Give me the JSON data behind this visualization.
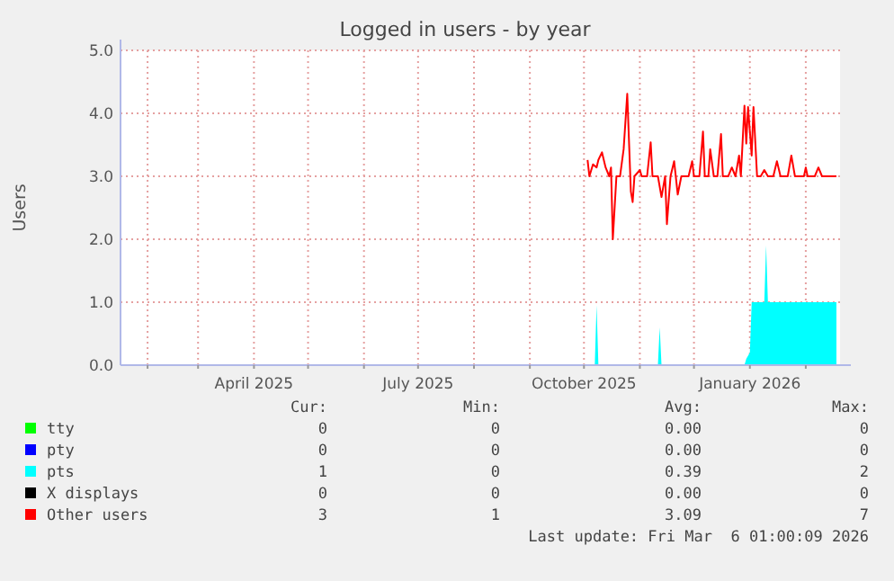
{
  "chart_data": {
    "type": "line",
    "title": "Logged in users - by year",
    "ylabel": "Users",
    "xlim": [
      "2025-01-17",
      "2026-02-20"
    ],
    "xticks": [
      {
        "value": "2025-02-01",
        "label": null
      },
      {
        "value": "2025-03-01",
        "label": null
      },
      {
        "value": "2025-04-01",
        "label": "April 2025"
      },
      {
        "value": "2025-05-01",
        "label": null
      },
      {
        "value": "2025-06-01",
        "label": null
      },
      {
        "value": "2025-07-01",
        "label": "July 2025"
      },
      {
        "value": "2025-08-01",
        "label": null
      },
      {
        "value": "2025-09-01",
        "label": null
      },
      {
        "value": "2025-10-01",
        "label": "October 2025"
      },
      {
        "value": "2025-11-01",
        "label": null
      },
      {
        "value": "2025-12-01",
        "label": null
      },
      {
        "value": "2026-01-01",
        "label": "January 2026"
      },
      {
        "value": "2026-02-01",
        "label": null
      }
    ],
    "ylim": [
      0,
      5
    ],
    "yticks": [
      {
        "value": 0,
        "label": "0.0"
      },
      {
        "value": 1,
        "label": "1.0"
      },
      {
        "value": 2,
        "label": "2.0"
      },
      {
        "value": 3,
        "label": "3.0"
      },
      {
        "value": 4,
        "label": "4.0"
      },
      {
        "value": 5,
        "label": "5.0"
      }
    ],
    "grid": true,
    "legend": "bottom",
    "series": [
      {
        "name": "tty",
        "color": "#00ff00"
      },
      {
        "name": "pty",
        "color": "#0000ff"
      },
      {
        "name": "pts",
        "color": "#00ffff",
        "type": "area",
        "x": [
          "2025-10-03",
          "2025-10-07",
          "2025-10-08",
          "2025-10-09",
          "2025-11-11",
          "2025-11-12",
          "2025-11-13",
          "2025-12-29",
          "2025-12-30",
          "2026-01-01",
          "2026-01-02",
          "2026-01-09",
          "2026-01-10",
          "2026-01-11",
          "2026-02-18"
        ],
        "values": [
          0,
          0,
          0.95,
          0,
          0,
          0.6,
          0,
          0,
          0.1,
          0.2,
          1,
          1,
          1.9,
          1,
          1
        ]
      },
      {
        "name": "X displays",
        "color": "#000000"
      },
      {
        "name": "Other users",
        "color": "#ff0000",
        "x": [
          "2025-10-03",
          "2025-10-04",
          "2025-10-06",
          "2025-10-08",
          "2025-10-09",
          "2025-10-11",
          "2025-10-13",
          "2025-10-15",
          "2025-10-16",
          "2025-10-17",
          "2025-10-19",
          "2025-10-21",
          "2025-10-23",
          "2025-10-25",
          "2025-10-27",
          "2025-10-28",
          "2025-10-29",
          "2025-11-01",
          "2025-11-02",
          "2025-11-05",
          "2025-11-07",
          "2025-11-08",
          "2025-11-11",
          "2025-11-13",
          "2025-11-15",
          "2025-11-16",
          "2025-11-18",
          "2025-11-20",
          "2025-11-22",
          "2025-11-24",
          "2025-11-28",
          "2025-11-30",
          "2025-12-01",
          "2025-12-04",
          "2025-12-06",
          "2025-12-07",
          "2025-12-09",
          "2025-12-10",
          "2025-12-12",
          "2025-12-14",
          "2025-12-16",
          "2025-12-17",
          "2025-12-20",
          "2025-12-22",
          "2025-12-24",
          "2025-12-26",
          "2025-12-27",
          "2025-12-29",
          "2025-12-30",
          "2025-12-31",
          "2026-01-02",
          "2026-01-03",
          "2026-01-05",
          "2026-01-07",
          "2026-01-09",
          "2026-01-11",
          "2026-01-14",
          "2026-01-16",
          "2026-01-18",
          "2026-01-22",
          "2026-01-24",
          "2026-01-26",
          "2026-01-31",
          "2026-02-01",
          "2026-02-02",
          "2026-02-06",
          "2026-02-08",
          "2026-02-10",
          "2026-02-18"
        ],
        "values": [
          3.26,
          3.0,
          3.19,
          3.14,
          3.26,
          3.38,
          3.14,
          3.0,
          3.14,
          2.0,
          3.0,
          3.0,
          3.43,
          4.31,
          2.76,
          2.59,
          3.0,
          3.1,
          3.0,
          3.0,
          3.54,
          3.0,
          3.0,
          2.67,
          3.0,
          2.24,
          3.0,
          3.24,
          2.71,
          3.0,
          3.0,
          3.24,
          3.0,
          3.0,
          3.71,
          3.0,
          3.0,
          3.43,
          3.0,
          3.0,
          3.67,
          3.0,
          3.0,
          3.14,
          3.0,
          3.33,
          3.0,
          4.12,
          3.52,
          4.1,
          3.33,
          4.1,
          3.0,
          3.0,
          3.1,
          3.0,
          3.0,
          3.24,
          3.0,
          3.0,
          3.33,
          3.0,
          3.0,
          3.14,
          3.0,
          3.0,
          3.14,
          3.0,
          3.0
        ]
      }
    ],
    "annotations": [
      "Cur:",
      "Min:",
      "Avg:",
      "Max:",
      "0",
      "0",
      "0.00",
      "0",
      "0",
      "0",
      "0.00",
      "0",
      "1",
      "0",
      "0.39",
      "2",
      "0",
      "0",
      "0.00",
      "0",
      "3",
      "1",
      "3.09",
      "7",
      "Last update: Fri Mar  6 01:00:09 2026"
    ]
  }
}
